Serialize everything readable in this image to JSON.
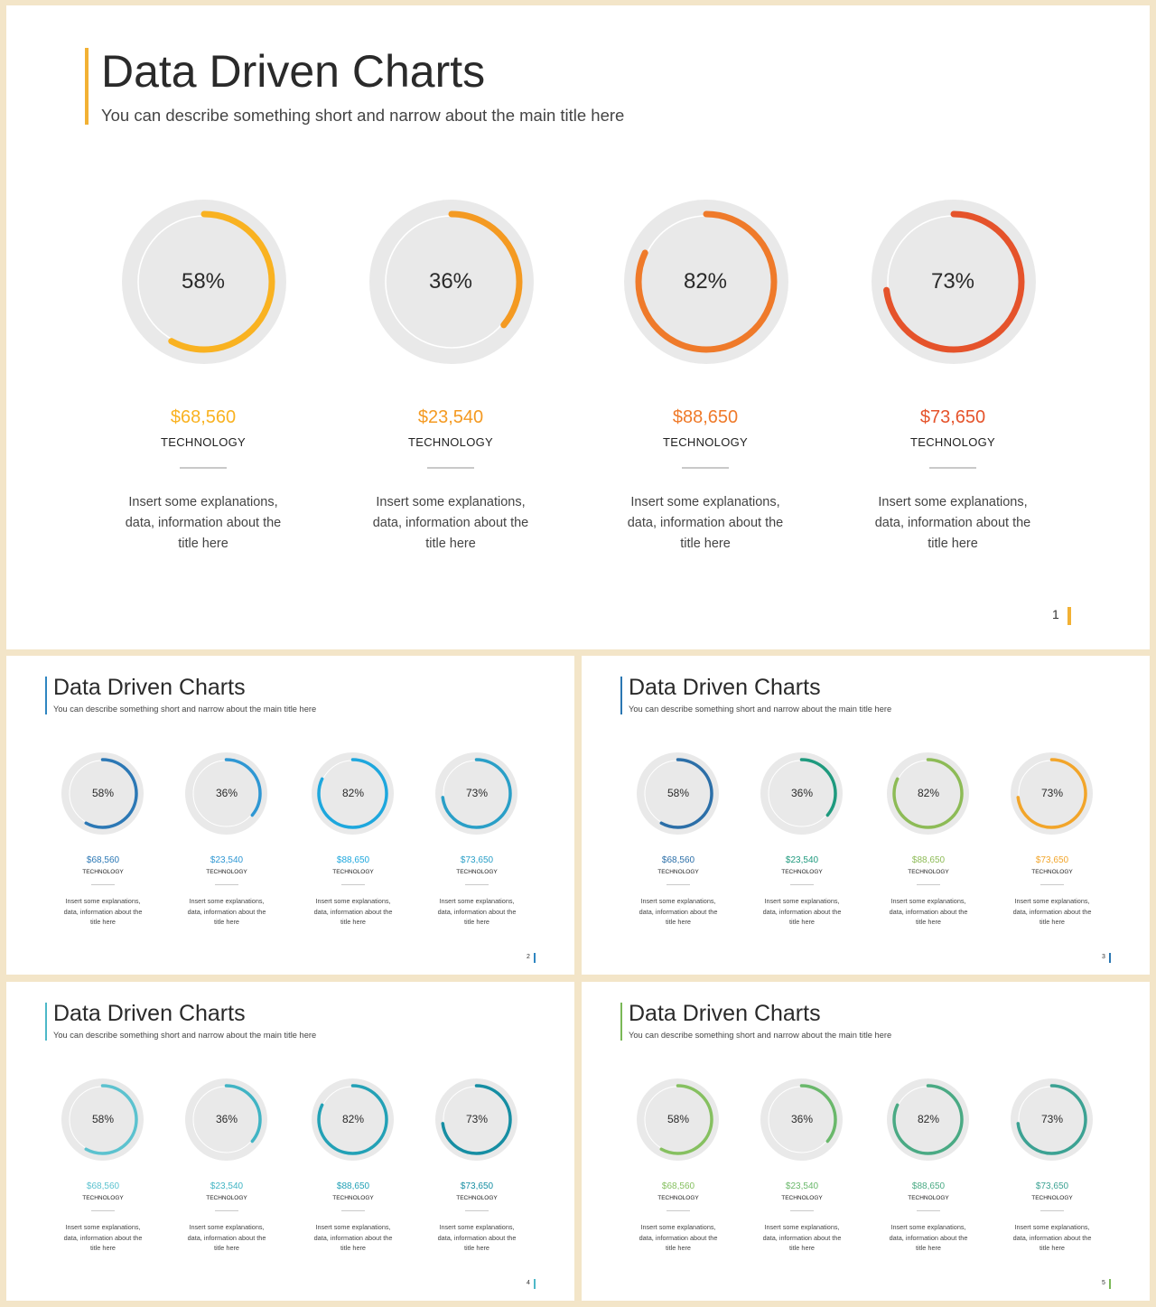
{
  "slides": [
    {
      "title": "Data Driven Charts",
      "subtitle": "You can describe something short and narrow about the main title here",
      "accent": "#f2b134",
      "page": "1",
      "items": [
        {
          "percent": "58%",
          "value": 0.58,
          "amount": "$68,560",
          "category": "TECHNOLOGY",
          "description": "Insert some explanations, data, information about the title here",
          "color": "#f9b221"
        },
        {
          "percent": "36%",
          "value": 0.36,
          "amount": "$23,540",
          "category": "TECHNOLOGY",
          "description": "Insert some explanations, data, information about the title here",
          "color": "#f49a22"
        },
        {
          "percent": "82%",
          "value": 0.82,
          "amount": "$88,650",
          "category": "TECHNOLOGY",
          "description": "Insert some explanations, data, information about the title here",
          "color": "#ef7a2a"
        },
        {
          "percent": "73%",
          "value": 0.73,
          "amount": "$73,650",
          "category": "TECHNOLOGY",
          "description": "Insert some explanations, data, information about the title here",
          "color": "#e5532b"
        }
      ]
    },
    {
      "title": "Data Driven Charts",
      "subtitle": "You can describe something short and narrow about the main title here",
      "accent": "#2f86c1",
      "page": "2",
      "items": [
        {
          "percent": "58%",
          "value": 0.58,
          "amount": "$68,560",
          "category": "TECHNOLOGY",
          "description": "Insert some explanations, data, information about the title here",
          "color": "#2c78b5"
        },
        {
          "percent": "36%",
          "value": 0.36,
          "amount": "$23,540",
          "category": "TECHNOLOGY",
          "description": "Insert some explanations, data, information about the title here",
          "color": "#2f97d3"
        },
        {
          "percent": "82%",
          "value": 0.82,
          "amount": "$88,650",
          "category": "TECHNOLOGY",
          "description": "Insert some explanations, data, information about the title here",
          "color": "#1ea7dd"
        },
        {
          "percent": "73%",
          "value": 0.73,
          "amount": "$73,650",
          "category": "TECHNOLOGY",
          "description": "Insert some explanations, data, information about the title here",
          "color": "#2a9fc7"
        }
      ]
    },
    {
      "title": "Data Driven Charts",
      "subtitle": "You can describe something short and narrow about the main title here",
      "accent": "#2a77b2",
      "page": "3",
      "items": [
        {
          "percent": "58%",
          "value": 0.58,
          "amount": "$68,560",
          "category": "TECHNOLOGY",
          "description": "Insert some explanations, data, information about the title here",
          "color": "#2c6fa8"
        },
        {
          "percent": "36%",
          "value": 0.36,
          "amount": "$23,540",
          "category": "TECHNOLOGY",
          "description": "Insert some explanations, data, information about the title here",
          "color": "#1f9a7e"
        },
        {
          "percent": "82%",
          "value": 0.82,
          "amount": "$88,650",
          "category": "TECHNOLOGY",
          "description": "Insert some explanations, data, information about the title here",
          "color": "#8dbb56"
        },
        {
          "percent": "73%",
          "value": 0.73,
          "amount": "$73,650",
          "category": "TECHNOLOGY",
          "description": "Insert some explanations, data, information about the title here",
          "color": "#f2a52a"
        }
      ]
    },
    {
      "title": "Data Driven Charts",
      "subtitle": "You can describe something short and narrow about the main title here",
      "accent": "#4db8c8",
      "page": "4",
      "items": [
        {
          "percent": "58%",
          "value": 0.58,
          "amount": "$68,560",
          "category": "TECHNOLOGY",
          "description": "Insert some explanations, data, information about the title here",
          "color": "#5cc2cf"
        },
        {
          "percent": "36%",
          "value": 0.36,
          "amount": "$23,540",
          "category": "TECHNOLOGY",
          "description": "Insert some explanations, data, information about the title here",
          "color": "#41b4c4"
        },
        {
          "percent": "82%",
          "value": 0.82,
          "amount": "$88,650",
          "category": "TECHNOLOGY",
          "description": "Insert some explanations, data, information about the title here",
          "color": "#23a1b6"
        },
        {
          "percent": "73%",
          "value": 0.73,
          "amount": "$73,650",
          "category": "TECHNOLOGY",
          "description": "Insert some explanations, data, information about the title here",
          "color": "#168ea3"
        }
      ]
    },
    {
      "title": "Data Driven Charts",
      "subtitle": "You can describe something short and narrow about the main title here",
      "accent": "#7ab857",
      "page": "5",
      "items": [
        {
          "percent": "58%",
          "value": 0.58,
          "amount": "$68,560",
          "category": "TECHNOLOGY",
          "description": "Insert some explanations, data, information about the title here",
          "color": "#86c060"
        },
        {
          "percent": "36%",
          "value": 0.36,
          "amount": "$23,540",
          "category": "TECHNOLOGY",
          "description": "Insert some explanations, data, information about the title here",
          "color": "#6ab86b"
        },
        {
          "percent": "82%",
          "value": 0.82,
          "amount": "$88,650",
          "category": "TECHNOLOGY",
          "description": "Insert some explanations, data, information about the title here",
          "color": "#4aaa84"
        },
        {
          "percent": "73%",
          "value": 0.73,
          "amount": "$73,650",
          "category": "TECHNOLOGY",
          "description": "Insert some explanations, data, information about the title here",
          "color": "#3ca293"
        }
      ]
    }
  ]
}
